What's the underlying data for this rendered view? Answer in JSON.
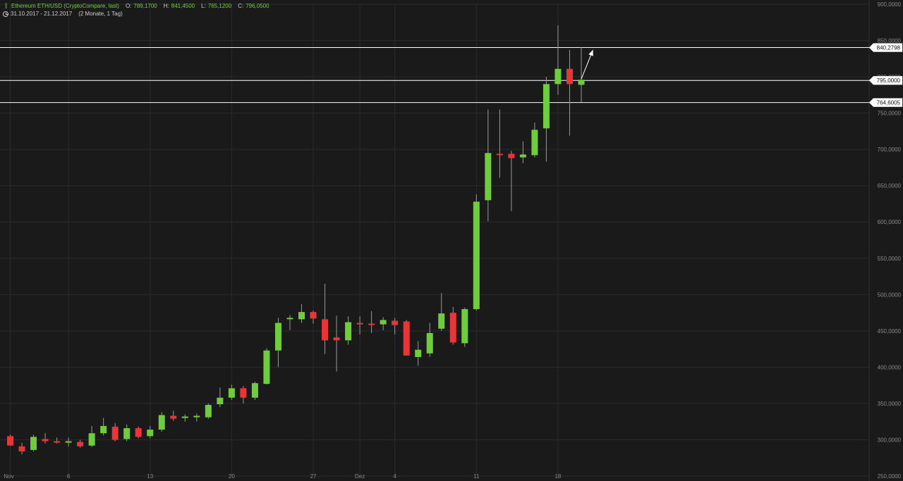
{
  "header": {
    "title": "Ethereum ETH/USD (CryptoCompare, last)",
    "ohlc": [
      {
        "label": "O:",
        "value": "789,1700"
      },
      {
        "label": "H:",
        "value": "841,4500"
      },
      {
        "label": "L:",
        "value": "765,1200"
      },
      {
        "label": "C:",
        "value": "796,0500"
      }
    ],
    "date_range": "31.10.2017 - 21.12.2017",
    "period": "(2 Monate, 1 Tag)"
  },
  "colors": {
    "background": "#1a1a1a",
    "grid": "#2b2b2b",
    "up": "#6fcc3c",
    "down": "#e8353a",
    "wick": "#9a9a9a",
    "axis_text": "#8a8a8a",
    "level_line": "#ffffff",
    "header_accent": "#7ec84a"
  },
  "icons": {
    "candle": "candlestick-icon",
    "clock": "clock-icon"
  },
  "chart_data": {
    "type": "candlestick",
    "ylim": [
      250,
      900
    ],
    "grid": true,
    "y_ticks": [
      {
        "value": 250,
        "label": "250,0000"
      },
      {
        "value": 300,
        "label": "300,0000"
      },
      {
        "value": 350,
        "label": "350,0000"
      },
      {
        "value": 400,
        "label": "400,0000"
      },
      {
        "value": 450,
        "label": "450,0000"
      },
      {
        "value": 500,
        "label": "500,0000"
      },
      {
        "value": 550,
        "label": "550,0000"
      },
      {
        "value": 600,
        "label": "600,0000"
      },
      {
        "value": 650,
        "label": "650,0000"
      },
      {
        "value": 700,
        "label": "700,0000"
      },
      {
        "value": 750,
        "label": "750,0000"
      },
      {
        "value": 800,
        "label": "800,0000"
      },
      {
        "value": 850,
        "label": "850,0000"
      },
      {
        "value": 900,
        "label": "900,0000"
      }
    ],
    "x_ticks": [
      {
        "index": 0,
        "label": "Nov"
      },
      {
        "index": 5,
        "label": "6"
      },
      {
        "index": 12,
        "label": "13"
      },
      {
        "index": 19,
        "label": "20"
      },
      {
        "index": 26,
        "label": "27"
      },
      {
        "index": 30,
        "label": "Dez"
      },
      {
        "index": 33,
        "label": "4"
      },
      {
        "index": 40,
        "label": "11"
      },
      {
        "index": 47,
        "label": "18"
      }
    ],
    "candles": [
      {
        "o": 305,
        "h": 307,
        "l": 292,
        "c": 292
      },
      {
        "o": 291,
        "h": 296,
        "l": 280,
        "c": 284
      },
      {
        "o": 286,
        "h": 307,
        "l": 284,
        "c": 304
      },
      {
        "o": 301,
        "h": 309,
        "l": 295,
        "c": 298
      },
      {
        "o": 298,
        "h": 303,
        "l": 295,
        "c": 296
      },
      {
        "o": 296,
        "h": 303,
        "l": 291,
        "c": 298
      },
      {
        "o": 297,
        "h": 300,
        "l": 289,
        "c": 291
      },
      {
        "o": 292,
        "h": 319,
        "l": 290,
        "c": 309
      },
      {
        "o": 309,
        "h": 330,
        "l": 306,
        "c": 319
      },
      {
        "o": 318,
        "h": 323,
        "l": 298,
        "c": 300
      },
      {
        "o": 301,
        "h": 321,
        "l": 298,
        "c": 316
      },
      {
        "o": 316,
        "h": 318,
        "l": 302,
        "c": 304
      },
      {
        "o": 305,
        "h": 319,
        "l": 302,
        "c": 314
      },
      {
        "o": 314,
        "h": 338,
        "l": 311,
        "c": 334
      },
      {
        "o": 333,
        "h": 340,
        "l": 326,
        "c": 329
      },
      {
        "o": 330,
        "h": 335,
        "l": 325,
        "c": 332
      },
      {
        "o": 331,
        "h": 336,
        "l": 325,
        "c": 333
      },
      {
        "o": 331,
        "h": 350,
        "l": 329,
        "c": 348
      },
      {
        "o": 349,
        "h": 372,
        "l": 345,
        "c": 358
      },
      {
        "o": 358,
        "h": 376,
        "l": 355,
        "c": 371
      },
      {
        "o": 371,
        "h": 374,
        "l": 350,
        "c": 358
      },
      {
        "o": 358,
        "h": 380,
        "l": 355,
        "c": 378
      },
      {
        "o": 377,
        "h": 426,
        "l": 376,
        "c": 423
      },
      {
        "o": 423,
        "h": 468,
        "l": 400,
        "c": 461
      },
      {
        "o": 467,
        "h": 472,
        "l": 451,
        "c": 468
      },
      {
        "o": 466,
        "h": 487,
        "l": 461,
        "c": 476
      },
      {
        "o": 476,
        "h": 478,
        "l": 460,
        "c": 467
      },
      {
        "o": 466,
        "h": 515,
        "l": 418,
        "c": 437
      },
      {
        "o": 441,
        "h": 471,
        "l": 394,
        "c": 437
      },
      {
        "o": 437,
        "h": 470,
        "l": 431,
        "c": 462
      },
      {
        "o": 461,
        "h": 470,
        "l": 445,
        "c": 459
      },
      {
        "o": 460,
        "h": 477,
        "l": 447,
        "c": 459
      },
      {
        "o": 459,
        "h": 469,
        "l": 451,
        "c": 465
      },
      {
        "o": 464,
        "h": 468,
        "l": 445,
        "c": 458
      },
      {
        "o": 463,
        "h": 465,
        "l": 417,
        "c": 416
      },
      {
        "o": 414,
        "h": 436,
        "l": 402,
        "c": 424
      },
      {
        "o": 419,
        "h": 461,
        "l": 414,
        "c": 447
      },
      {
        "o": 453,
        "h": 502,
        "l": 450,
        "c": 474
      },
      {
        "o": 475,
        "h": 483,
        "l": 431,
        "c": 434
      },
      {
        "o": 433,
        "h": 482,
        "l": 428,
        "c": 480
      },
      {
        "o": 480,
        "h": 638,
        "l": 478,
        "c": 628
      },
      {
        "o": 630,
        "h": 755,
        "l": 601,
        "c": 695
      },
      {
        "o": 694,
        "h": 755,
        "l": 661,
        "c": 693
      },
      {
        "o": 694,
        "h": 698,
        "l": 615,
        "c": 688
      },
      {
        "o": 689,
        "h": 711,
        "l": 681,
        "c": 693
      },
      {
        "o": 692,
        "h": 737,
        "l": 689,
        "c": 727
      },
      {
        "o": 729,
        "h": 800,
        "l": 683,
        "c": 790
      },
      {
        "o": 790,
        "h": 871,
        "l": 775,
        "c": 811
      },
      {
        "o": 811,
        "h": 837,
        "l": 719,
        "c": 790
      },
      {
        "o": 789,
        "h": 841,
        "l": 765,
        "c": 796
      }
    ],
    "levels": [
      {
        "value": 840.2798,
        "label": "840,2798"
      },
      {
        "value": 795.0,
        "label": "795,0000"
      },
      {
        "value": 764.6005,
        "label": "764,6005"
      }
    ],
    "arrow": {
      "from": {
        "index": 49,
        "value": 797
      },
      "to": {
        "index": 50,
        "value": 837
      }
    }
  }
}
